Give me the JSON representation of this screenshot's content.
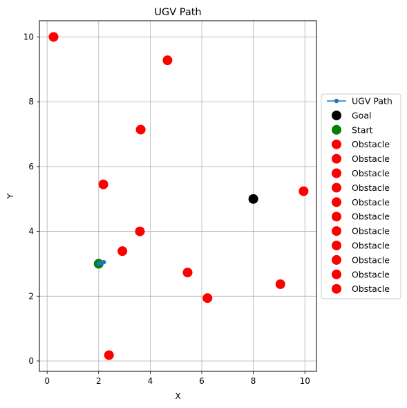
{
  "chart_data": {
    "type": "scatter",
    "title": "UGV Path",
    "xlabel": "X",
    "ylabel": "Y",
    "xlim": [
      -0.3,
      10.45
    ],
    "ylim": [
      -0.32,
      10.5
    ],
    "xticks": [
      0,
      2,
      4,
      6,
      8,
      10
    ],
    "yticks": [
      0,
      2,
      4,
      6,
      8,
      10
    ],
    "grid": true,
    "legend_position": "center-right-outside",
    "series": [
      {
        "name": "UGV Path",
        "kind": "line",
        "color": "#1f77b4",
        "points": [
          [
            2.0,
            3.0
          ],
          [
            2.07,
            3.02
          ],
          [
            2.14,
            3.04
          ],
          [
            2.2,
            3.05
          ]
        ]
      },
      {
        "name": "Goal",
        "kind": "scatter",
        "color": "#000000",
        "points": [
          [
            8.0,
            5.0
          ]
        ]
      },
      {
        "name": "Start",
        "kind": "scatter",
        "color": "#008000",
        "points": [
          [
            2.0,
            3.0
          ]
        ]
      },
      {
        "name": "Obstacle",
        "kind": "scatter",
        "color": "#ff0000",
        "points": [
          [
            0.25,
            10.0
          ]
        ]
      },
      {
        "name": "Obstacle",
        "kind": "scatter",
        "color": "#ff0000",
        "points": [
          [
            4.67,
            9.28
          ]
        ]
      },
      {
        "name": "Obstacle",
        "kind": "scatter",
        "color": "#ff0000",
        "points": [
          [
            3.63,
            7.14
          ]
        ]
      },
      {
        "name": "Obstacle",
        "kind": "scatter",
        "color": "#ff0000",
        "points": [
          [
            2.18,
            5.45
          ]
        ]
      },
      {
        "name": "Obstacle",
        "kind": "scatter",
        "color": "#ff0000",
        "points": [
          [
            9.95,
            5.24
          ]
        ]
      },
      {
        "name": "Obstacle",
        "kind": "scatter",
        "color": "#ff0000",
        "points": [
          [
            3.6,
            4.0
          ]
        ]
      },
      {
        "name": "Obstacle",
        "kind": "scatter",
        "color": "#ff0000",
        "points": [
          [
            2.92,
            3.39
          ]
        ]
      },
      {
        "name": "Obstacle",
        "kind": "scatter",
        "color": "#ff0000",
        "points": [
          [
            5.45,
            2.73
          ]
        ]
      },
      {
        "name": "Obstacle",
        "kind": "scatter",
        "color": "#ff0000",
        "points": [
          [
            9.05,
            2.37
          ]
        ]
      },
      {
        "name": "Obstacle",
        "kind": "scatter",
        "color": "#ff0000",
        "points": [
          [
            6.22,
            1.94
          ]
        ]
      },
      {
        "name": "Obstacle",
        "kind": "scatter",
        "color": "#ff0000",
        "points": [
          [
            2.4,
            0.18
          ]
        ]
      }
    ]
  }
}
